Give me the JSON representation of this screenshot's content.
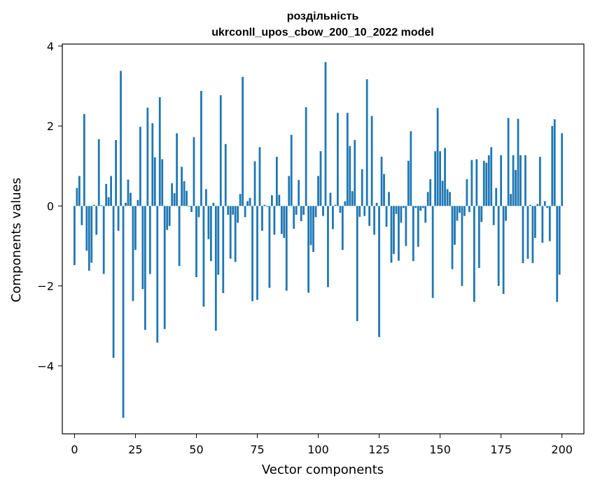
{
  "chart_data": {
    "type": "bar",
    "title": "роздільність",
    "subtitle": "ukrconll_upos_cbow_200_10_2022 model",
    "xlabel": "Vector components",
    "ylabel": "Components values",
    "xlim": [
      -5,
      209
    ],
    "ylim": [
      -5.7,
      4.05
    ],
    "xticks": [
      0,
      25,
      50,
      75,
      100,
      125,
      150,
      175,
      200
    ],
    "yticks": [
      -4,
      -2,
      0,
      2,
      4
    ],
    "ytick_labels": [
      "−4",
      "−2",
      "0",
      "2",
      "4"
    ],
    "grid": false,
    "legend": "none",
    "bar_color": "#1f77b4",
    "values": [
      -1.48,
      0.45,
      0.75,
      -0.48,
      2.3,
      -1.12,
      -1.62,
      -1.42,
      0.03,
      -0.72,
      1.67,
      0.02,
      -1.7,
      0.55,
      0.22,
      0.75,
      -3.8,
      1.65,
      -0.62,
      3.38,
      -5.3,
      0.08,
      0.66,
      0.33,
      -2.38,
      -1.1,
      0.15,
      1.98,
      -2.08,
      -3.1,
      2.46,
      -1.7,
      2.07,
      1.22,
      -3.42,
      2.72,
      1.17,
      -3.08,
      -0.6,
      -0.5,
      0.57,
      0.32,
      1.82,
      -1.5,
      0.98,
      0.62,
      0.38,
      -0.02,
      -0.15,
      1.72,
      -1.78,
      -0.28,
      2.88,
      -2.52,
      0.42,
      -0.83,
      -1.38,
      0.08,
      -3.12,
      -1.72,
      2.77,
      -2.18,
      1.55,
      -0.22,
      -1.32,
      -0.22,
      -1.4,
      -0.42,
      0.3,
      3.23,
      -0.28,
      0.12,
      0.2,
      -2.38,
      1.12,
      -2.35,
      1.47,
      -0.62,
      0.03,
      -0.02,
      -2.05,
      0.27,
      -0.72,
      1.23,
      0.28,
      -0.7,
      -0.8,
      -2.12,
      0.75,
      1.78,
      -0.57,
      -0.22,
      0.65,
      -0.38,
      -0.22,
      2.47,
      -2.17,
      -0.98,
      -1.15,
      -0.28,
      0.75,
      1.37,
      -0.25,
      3.6,
      -2.03,
      0.33,
      -0.58,
      0.03,
      2.33,
      -0.17,
      -1.1,
      0.12,
      2.33,
      1.5,
      0.37,
      1.65,
      -2.88,
      -0.27,
      0.92,
      -0.25,
      3.17,
      -0.5,
      2.25,
      -0.72,
      0.08,
      -3.28,
      1.23,
      0.8,
      -0.52,
      0.35,
      -1.42,
      -1.2,
      -0.2,
      -1.37,
      -0.42,
      -0.05,
      -1.0,
      1.13,
      1.87,
      -1.38,
      -0.05,
      -1.02,
      -0.12,
      -0.05,
      -0.42,
      0.35,
      0.67,
      -2.3,
      1.37,
      2.45,
      1.37,
      0.63,
      1.45,
      0.42,
      0.35,
      -1.58,
      -0.97,
      -0.37,
      -0.17,
      -2.0,
      -0.25,
      0.67,
      -0.15,
      1.15,
      -2.4,
      1.17,
      -1.55,
      -0.4,
      1.13,
      1.08,
      1.27,
      1.47,
      -0.48,
      0.45,
      -2.0,
      1.27,
      -2.2,
      -0.37,
      2.2,
      0.3,
      1.27,
      0.9,
      2.18,
      1.27,
      -1.43,
      1.27,
      -1.32,
      0.03,
      -1.43,
      -0.8,
      0.05,
      1.23,
      -0.92,
      0.12,
      -0.05,
      -0.88,
      2.0,
      2.17,
      -2.4,
      -1.72,
      1.82
    ]
  }
}
